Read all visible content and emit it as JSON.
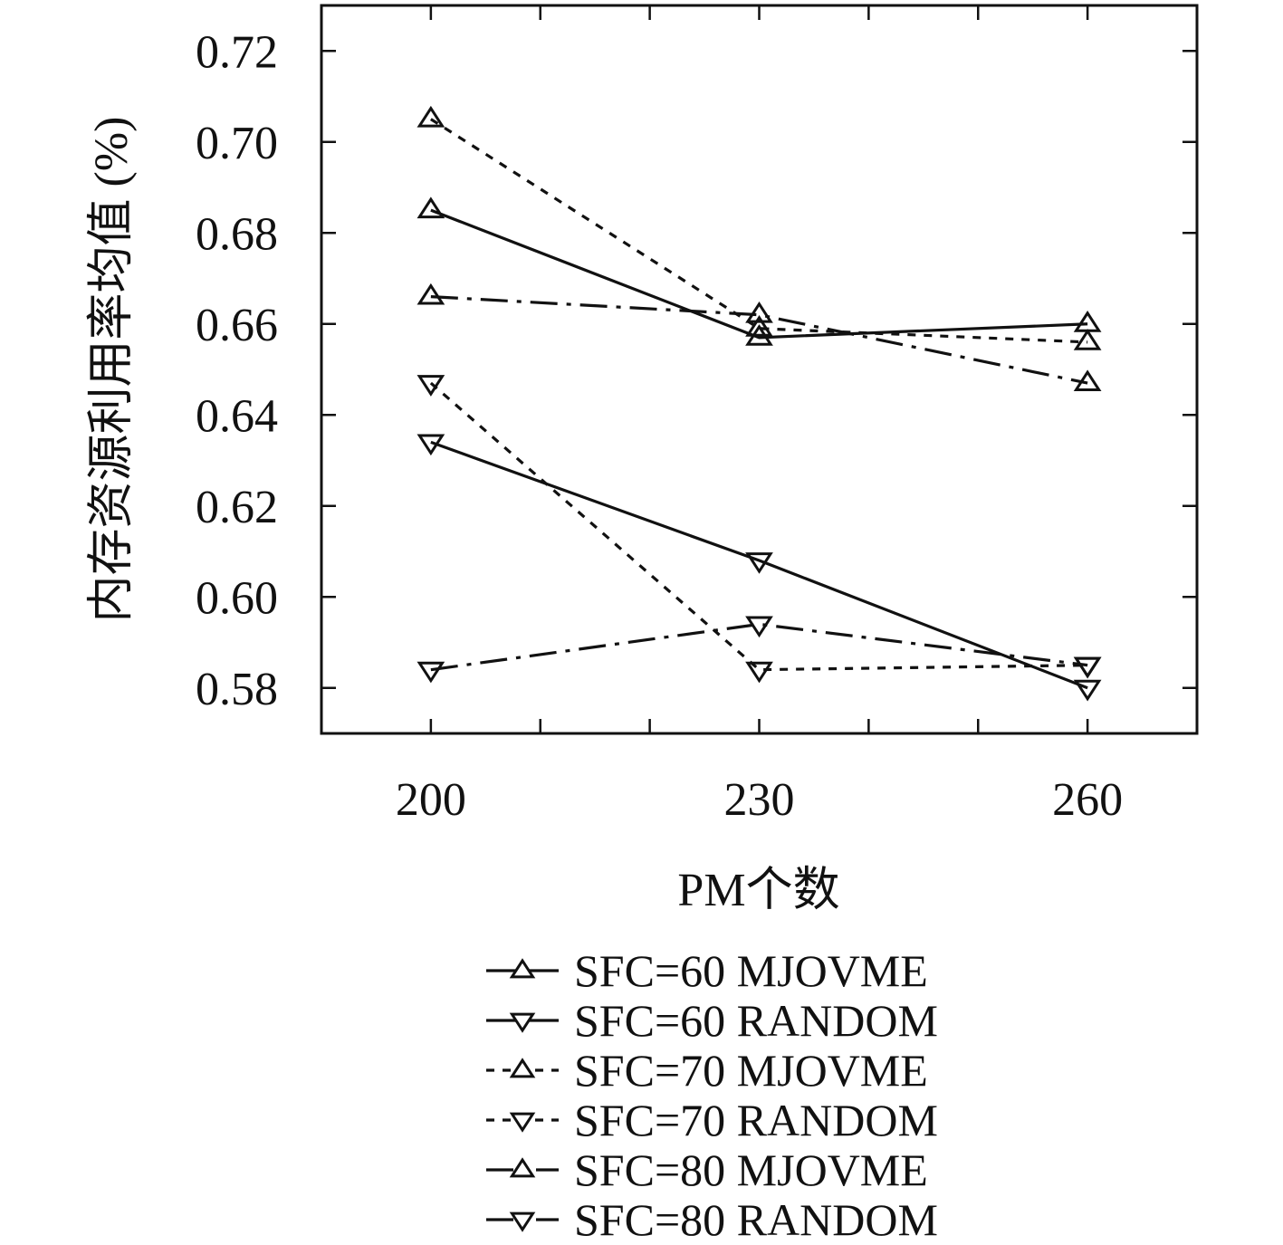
{
  "chart_data": {
    "type": "line",
    "title": "",
    "xlabel": "PM个数",
    "ylabel": "内存资源利用率均值 (%)",
    "x": [
      200,
      230,
      260
    ],
    "x_tick_labels": [
      "200",
      "230",
      "260"
    ],
    "xlim": [
      190,
      270
    ],
    "ylim": [
      0.57,
      0.73
    ],
    "y_ticks": [
      0.58,
      0.6,
      0.62,
      0.64,
      0.66,
      0.68,
      0.7,
      0.72
    ],
    "y_tick_labels": [
      "0.58",
      "0.60",
      "0.62",
      "0.64",
      "0.66",
      "0.68",
      "0.70",
      "0.72"
    ],
    "grid": false,
    "legend_position": "below",
    "series": [
      {
        "name": "SFC=60 MJOVME",
        "values": [
          0.685,
          0.657,
          0.66
        ],
        "line_style": "solid",
        "marker": "triangle-up"
      },
      {
        "name": "SFC=60 RANDOM",
        "values": [
          0.634,
          0.608,
          0.58
        ],
        "line_style": "solid",
        "marker": "triangle-down"
      },
      {
        "name": "SFC=70 MJOVME",
        "values": [
          0.705,
          0.659,
          0.656
        ],
        "line_style": "dashed",
        "marker": "triangle-up"
      },
      {
        "name": "SFC=70 RANDOM",
        "values": [
          0.647,
          0.584,
          0.585
        ],
        "line_style": "dashed",
        "marker": "triangle-down"
      },
      {
        "name": "SFC=80 MJOVME",
        "values": [
          0.666,
          0.662,
          0.647
        ],
        "line_style": "dashdot",
        "marker": "triangle-up"
      },
      {
        "name": "SFC=80 RANDOM",
        "values": [
          0.584,
          0.594,
          0.585
        ],
        "line_style": "dashdot",
        "marker": "triangle-down"
      }
    ],
    "colors": {
      "line": "#111111",
      "background": "#ffffff"
    }
  }
}
